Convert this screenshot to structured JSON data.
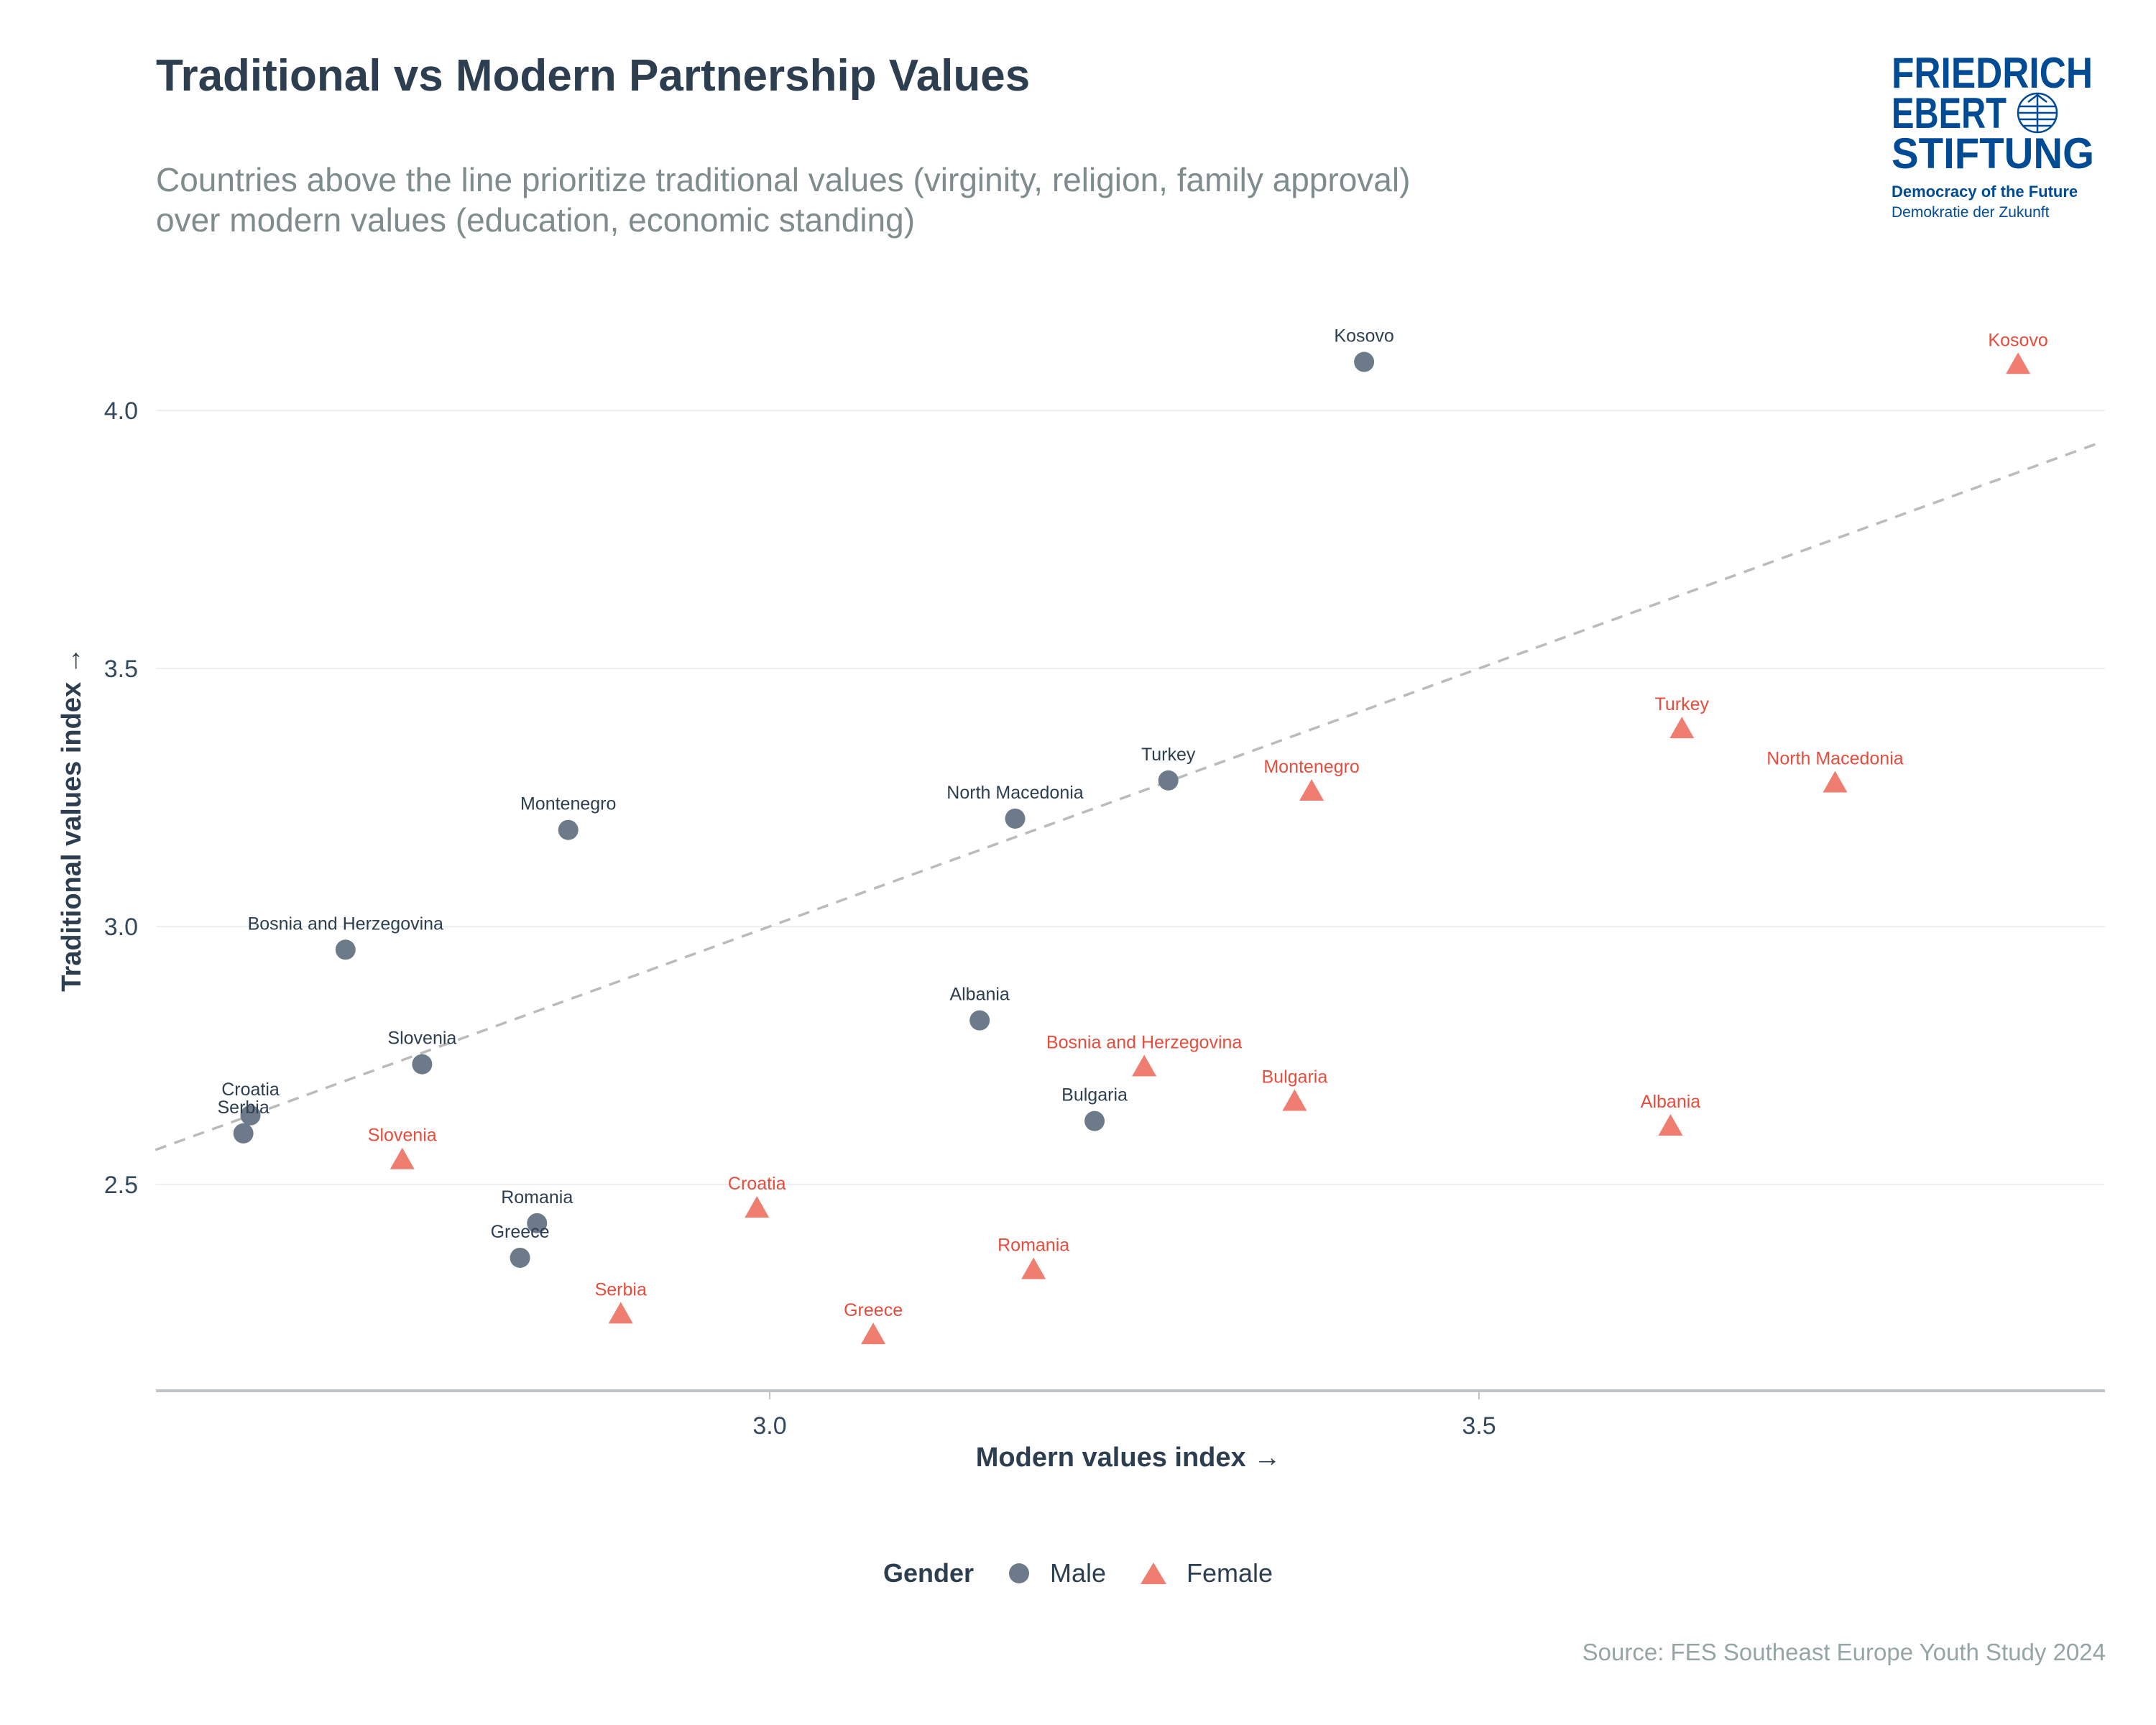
{
  "title": "Traditional vs Modern Partnership Values",
  "subtitle_lines": [
    "Countries above the line prioritize traditional values (virginity, religion, family approval)",
    "over modern values (education, economic standing)"
  ],
  "logo": {
    "lines": [
      "FRIEDRICH",
      "EBERT",
      "STIFTUNG"
    ],
    "tagline": "Democracy of the Future",
    "tagline_de": "Demokratie der Zukunft",
    "color": "#004b93"
  },
  "source": "Source: FES Southeast Europe Youth Study 2024",
  "legend": {
    "title": "Gender",
    "male": "Male",
    "female": "Female"
  },
  "chart_data": {
    "type": "scatter",
    "xlabel": "Modern values index →",
    "ylabel": "Traditional values index →",
    "xlim": [
      2.567,
      3.94
    ],
    "ylim": [
      2.1,
      4.24
    ],
    "xticks": [
      "3.0",
      "3.5"
    ],
    "yticks": [
      "2.5",
      "3.0",
      "3.5",
      "4.0"
    ],
    "grid": "horizontal",
    "legend_position": "bottom",
    "reference_line": {
      "style": "dashed",
      "slope": 1,
      "intercept": 0,
      "color": "#bbbbbb"
    },
    "colors": {
      "Male": "#6c7a89",
      "Female": "#ef7e71",
      "male_label": "#2c3e50",
      "female_label": "#e74c3c"
    },
    "series": [
      {
        "name": "Male",
        "marker": "circle",
        "points": [
          {
            "label": "Kosovo",
            "x": 3.419,
            "y": 4.094
          },
          {
            "label": "Turkey",
            "x": 3.281,
            "y": 3.283
          },
          {
            "label": "North Macedonia",
            "x": 3.173,
            "y": 3.209
          },
          {
            "label": "Montenegro",
            "x": 2.858,
            "y": 3.187
          },
          {
            "label": "Bosnia and Herzegovina",
            "x": 2.701,
            "y": 2.955
          },
          {
            "label": "Albania",
            "x": 3.148,
            "y": 2.818
          },
          {
            "label": "Slovenia",
            "x": 2.755,
            "y": 2.733
          },
          {
            "label": "Bulgaria",
            "x": 3.229,
            "y": 2.623
          },
          {
            "label": "Croatia",
            "x": 2.634,
            "y": 2.634
          },
          {
            "label": "Serbia",
            "x": 2.629,
            "y": 2.599
          },
          {
            "label": "Romania",
            "x": 2.836,
            "y": 2.425
          },
          {
            "label": "Greece",
            "x": 2.824,
            "y": 2.358
          }
        ]
      },
      {
        "name": "Female",
        "marker": "triangle",
        "points": [
          {
            "label": "Kosovo",
            "x": 3.88,
            "y": 4.086
          },
          {
            "label": "Turkey",
            "x": 3.643,
            "y": 3.38
          },
          {
            "label": "North Macedonia",
            "x": 3.751,
            "y": 3.275
          },
          {
            "label": "Montenegro",
            "x": 3.382,
            "y": 3.259
          },
          {
            "label": "Bosnia and Herzegovina",
            "x": 3.264,
            "y": 2.725
          },
          {
            "label": "Bulgaria",
            "x": 3.37,
            "y": 2.658
          },
          {
            "label": "Albania",
            "x": 3.635,
            "y": 2.61
          },
          {
            "label": "Slovenia",
            "x": 2.741,
            "y": 2.545
          },
          {
            "label": "Croatia",
            "x": 2.991,
            "y": 2.451
          },
          {
            "label": "Romania",
            "x": 3.186,
            "y": 2.332
          },
          {
            "label": "Serbia",
            "x": 2.895,
            "y": 2.246
          },
          {
            "label": "Greece",
            "x": 3.073,
            "y": 2.206
          }
        ]
      }
    ]
  }
}
